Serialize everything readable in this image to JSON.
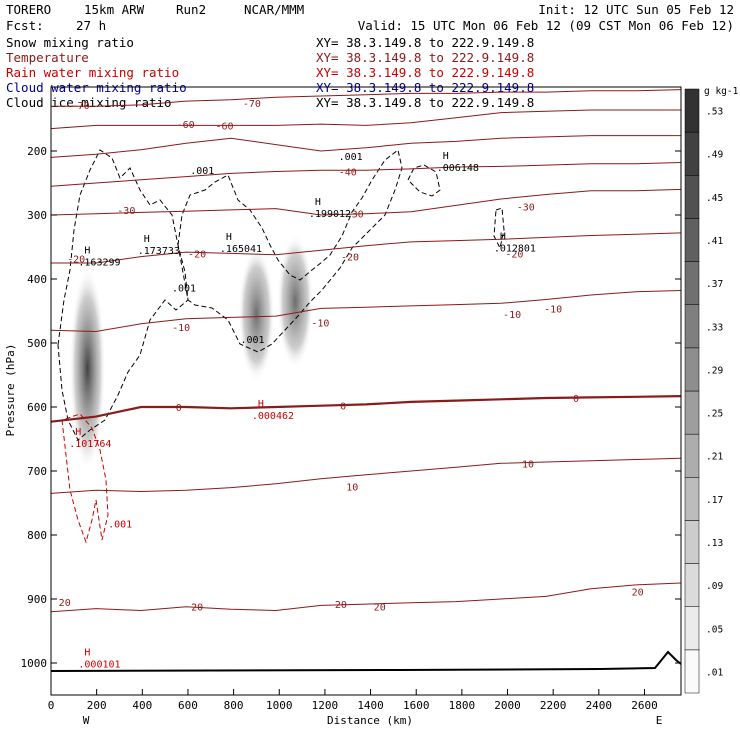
{
  "header": {
    "model": "TORERO",
    "resolution": "15km ARW",
    "run": "Run2",
    "org": "NCAR/MMM",
    "init": "Init: 12 UTC Sun 05 Feb 12",
    "fcst_label": "Fcst:",
    "fcst_value": "27 h",
    "valid": "Valid: 15 UTC Mon 06 Feb 12 (09 CST Mon 06 Feb 12)"
  },
  "fields": [
    {
      "name": "Snow mixing ratio",
      "xy": "XY=  38.3.149.8 to 222.9.149.8",
      "color": "#000000"
    },
    {
      "name": "Temperature",
      "xy": "XY=  38.3.149.8 to 222.9.149.8",
      "color": "#8b1a1a"
    },
    {
      "name": "Rain water mixing ratio",
      "xy": "XY=  38.3.149.8 to 222.9.149.8",
      "color": "#cc0000"
    },
    {
      "name": "Cloud water mixing ratio",
      "xy": "XY=  38.3.149.8 to 222.9.149.8",
      "color": "#000099"
    },
    {
      "name": "Cloud ice mixing ratio",
      "xy": "XY=  38.3.149.8 to 222.9.149.8",
      "color": "#000000"
    }
  ],
  "colors": {
    "temperature": "#8b1a1a",
    "rain": "#cc0000",
    "snow": "#000000",
    "cloud_ice": "#000000",
    "ground": "#000000"
  },
  "chart_data": {
    "type": "heatmap",
    "xlabel": "Distance (km)",
    "ylabel": "Pressure (hPa)",
    "xlim": [
      0,
      2760
    ],
    "ylim": [
      1050,
      100
    ],
    "xticks": [
      0,
      200,
      400,
      600,
      800,
      1000,
      1200,
      1400,
      1600,
      1800,
      2000,
      2200,
      2400,
      2600
    ],
    "yticks": [
      200,
      300,
      400,
      500,
      600,
      700,
      800,
      900,
      1000
    ],
    "end_labels": {
      "left": "W",
      "right": "E"
    },
    "colorbar": {
      "unit": "g kg-1",
      "ticks": [
        ".01",
        ".05",
        ".09",
        ".13",
        ".17",
        ".21",
        ".25",
        ".29",
        ".33",
        ".37",
        ".41",
        ".45",
        ".49",
        ".53"
      ]
    },
    "snow_cores": [
      {
        "x": 160,
        "p_top": 380,
        "p_bottom": 700,
        "max": 0.53
      },
      {
        "x": 900,
        "p_top": 350,
        "p_bottom": 560,
        "max": 0.41
      },
      {
        "x": 1070,
        "p_top": 330,
        "p_bottom": 540,
        "max": 0.41
      }
    ],
    "isotherms": [
      {
        "label": "-70",
        "values": [
          130,
          130,
          128,
          122,
          120,
          116,
          114,
          112,
          110,
          110,
          108,
          108,
          106,
          106,
          104
        ]
      },
      {
        "label": "-60",
        "values": [
          165,
          160,
          160,
          160,
          160,
          160,
          158,
          160,
          156,
          148,
          140,
          138,
          136,
          136,
          136
        ]
      },
      {
        "label": "-50",
        "values": [
          210,
          205,
          198,
          188,
          180,
          190,
          200,
          195,
          188,
          185,
          180,
          178,
          176,
          176,
          176
        ]
      },
      {
        "label": "-40",
        "values": [
          255,
          250,
          245,
          240,
          235,
          232,
          230,
          230,
          228,
          225,
          224,
          222,
          220,
          220,
          218
        ]
      },
      {
        "label": "-30",
        "values": [
          300,
          298,
          296,
          294,
          292,
          290,
          300,
          298,
          295,
          285,
          275,
          268,
          262,
          262,
          260
        ]
      },
      {
        "label": "-20",
        "values": [
          375,
          375,
          365,
          358,
          360,
          362,
          355,
          348,
          342,
          340,
          338,
          335,
          332,
          330,
          328
        ]
      },
      {
        "label": "-10",
        "values": [
          480,
          482,
          470,
          462,
          460,
          458,
          446,
          444,
          442,
          440,
          438,
          432,
          425,
          420,
          418
        ]
      },
      {
        "label": "0",
        "values": [
          623,
          615,
          600,
          600,
          602,
          600,
          598,
          596,
          592,
          590,
          588,
          586,
          585,
          584,
          583
        ]
      },
      {
        "label": "10",
        "values": [
          735,
          730,
          732,
          730,
          726,
          720,
          712,
          706,
          700,
          694,
          688,
          686,
          684,
          682,
          680
        ]
      },
      {
        "label": "20",
        "values": [
          920,
          915,
          918,
          912,
          916,
          918,
          910,
          908,
          906,
          904,
          900,
          896,
          884,
          878,
          875
        ]
      }
    ],
    "isotherm_labels": [
      {
        "text": "-70",
        "x": 130,
        "p": 128,
        "color": "#8b1a1a"
      },
      {
        "text": "-70",
        "x": 880,
        "p": 125,
        "color": "#8b1a1a"
      },
      {
        "text": "-60",
        "x": 590,
        "p": 158,
        "color": "#8b1a1a"
      },
      {
        "text": "-60",
        "x": 760,
        "p": 160,
        "color": "#8b1a1a"
      },
      {
        "text": "-40",
        "x": 1300,
        "p": 232,
        "color": "#8b1a1a"
      },
      {
        "text": "-30",
        "x": 330,
        "p": 292,
        "color": "#8b1a1a"
      },
      {
        "text": "-30",
        "x": 1330,
        "p": 298,
        "color": "#8b1a1a"
      },
      {
        "text": "-30",
        "x": 2080,
        "p": 287,
        "color": "#8b1a1a"
      },
      {
        "text": "-20",
        "x": 110,
        "p": 368,
        "color": "#8b1a1a"
      },
      {
        "text": "-20",
        "x": 640,
        "p": 360,
        "color": "#8b1a1a"
      },
      {
        "text": "-20",
        "x": 1310,
        "p": 365,
        "color": "#8b1a1a"
      },
      {
        "text": "-20",
        "x": 2030,
        "p": 360,
        "color": "#8b1a1a"
      },
      {
        "text": "-10",
        "x": 570,
        "p": 475,
        "color": "#8b1a1a"
      },
      {
        "text": "-10",
        "x": 1180,
        "p": 468,
        "color": "#8b1a1a"
      },
      {
        "text": "-10",
        "x": 2020,
        "p": 455,
        "color": "#8b1a1a"
      },
      {
        "text": "-10",
        "x": 2200,
        "p": 446,
        "color": "#8b1a1a"
      },
      {
        "text": "0",
        "x": 560,
        "p": 600,
        "color": "#8b1a1a"
      },
      {
        "text": "0",
        "x": 1280,
        "p": 598,
        "color": "#8b1a1a"
      },
      {
        "text": "0",
        "x": 2300,
        "p": 586,
        "color": "#8b1a1a"
      },
      {
        "text": "10",
        "x": 1320,
        "p": 724,
        "color": "#8b1a1a"
      },
      {
        "text": "10",
        "x": 2090,
        "p": 688,
        "color": "#8b1a1a"
      },
      {
        "text": "20",
        "x": 60,
        "p": 905,
        "color": "#8b1a1a"
      },
      {
        "text": "20",
        "x": 640,
        "p": 912,
        "color": "#8b1a1a"
      },
      {
        "text": "20",
        "x": 1270,
        "p": 908,
        "color": "#8b1a1a"
      },
      {
        "text": "20",
        "x": 1440,
        "p": 912,
        "color": "#8b1a1a"
      },
      {
        "text": "20",
        "x": 2570,
        "p": 888,
        "color": "#8b1a1a"
      }
    ],
    "max_labels": [
      {
        "h": "H",
        "value": ".163299",
        "x": 120,
        "p": 376,
        "color": "#000000"
      },
      {
        "h": "H",
        "value": ".173733",
        "x": 380,
        "p": 358,
        "color": "#000000"
      },
      {
        "h": "H",
        "value": ".165041",
        "x": 740,
        "p": 355,
        "color": "#000000"
      },
      {
        "h": "H",
        "value": ".199012",
        "x": 1130,
        "p": 300,
        "color": "#000000"
      },
      {
        "h": "H",
        "value": ".006148",
        "x": 1690,
        "p": 228,
        "color": "#000000"
      },
      {
        "h": "H",
        "value": ".012801",
        "x": 1940,
        "p": 354,
        "color": "#000000"
      },
      {
        "h": "H",
        "value": ".101764",
        "x": 80,
        "p": 659,
        "color": "#cc0000"
      },
      {
        "h": "H",
        "value": ".000462",
        "x": 880,
        "p": 616,
        "color": "#cc0000"
      },
      {
        "h": "H",
        "value": ".000101",
        "x": 120,
        "p": 1004,
        "color": "#cc0000"
      }
    ],
    "contour_labels": [
      {
        "text": ".001",
        "x": 610,
        "p": 230,
        "color": "#000000"
      },
      {
        "text": ".001",
        "x": 1260,
        "p": 208,
        "color": "#000000"
      },
      {
        "text": ".001",
        "x": 530,
        "p": 413,
        "color": "#000000"
      },
      {
        "text": ".001",
        "x": 830,
        "p": 494,
        "color": "#000000"
      },
      {
        "text": ".001",
        "x": 250,
        "p": 782,
        "color": "#cc0000"
      }
    ]
  }
}
